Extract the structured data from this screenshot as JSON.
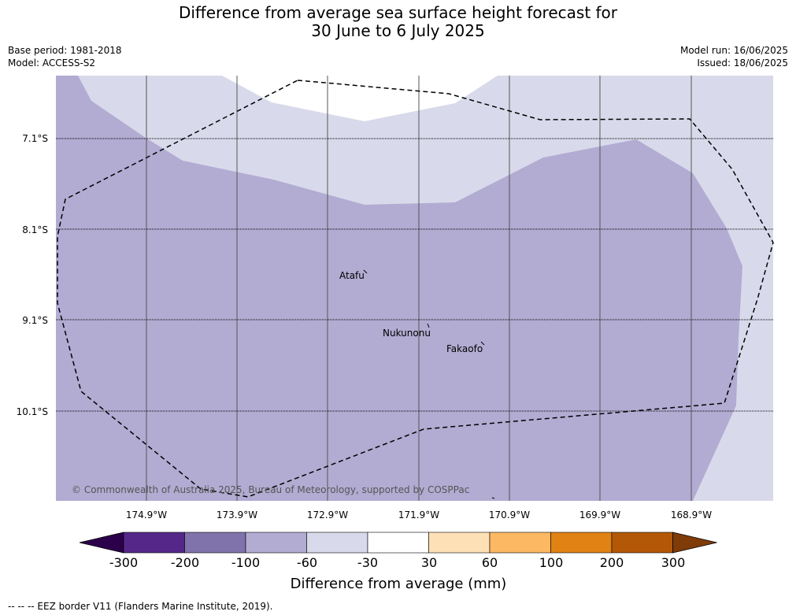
{
  "header": {
    "title_line1": "Difference from average sea surface height forecast for",
    "title_line2": "30 June to 6 July 2025",
    "base_period": "Base period: 1981-2018",
    "model": "Model: ACCESS-S2",
    "model_run": "Model run: 16/06/2025",
    "issued": "Issued: 18/06/2025"
  },
  "map": {
    "lat_labels": [
      "7.1°S",
      "8.1°S",
      "9.1°S",
      "10.1°S"
    ],
    "lon_labels": [
      "174.9°W",
      "173.9°W",
      "172.9°W",
      "171.9°W",
      "170.9°W",
      "169.9°W",
      "168.9°W"
    ],
    "places": [
      {
        "name": "Atafu"
      },
      {
        "name": "Nukunonu"
      },
      {
        "name": "Fakaofo"
      }
    ],
    "copyright": "© Commonwealth of Australia 2025, Bureau of Meteorology, supported by COSPPac"
  },
  "colorbar": {
    "label": "Difference from average (mm)",
    "ticks": [
      "-300",
      "-200",
      "-100",
      "-60",
      "-30",
      "30",
      "60",
      "100",
      "200",
      "300"
    ],
    "colors": [
      "#2d004b",
      "#542788",
      "#8073ac",
      "#b2abd2",
      "#d8daeb",
      "#ffffff",
      "#fee0b6",
      "#fdb863",
      "#e08214",
      "#b35806",
      "#7f3b08"
    ]
  },
  "legend": {
    "eez_label": "--  --  -- EEZ border V11 (Flanders Marine Institute, 2019)."
  }
}
